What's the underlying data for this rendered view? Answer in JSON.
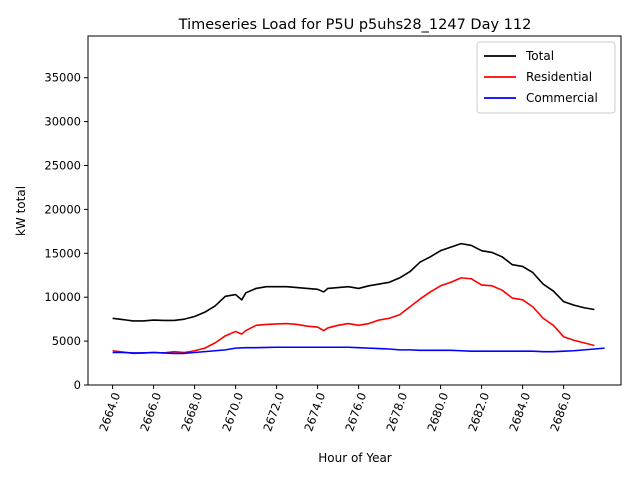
{
  "chart_data": {
    "type": "line",
    "title": "Timeseries Load for P5U p5uhs28_1247  Day 112",
    "xlabel": "Hour of Year",
    "ylabel": "kW total",
    "xlim": [
      2662.8,
      2688.8
    ],
    "ylim": [
      0,
      39750
    ],
    "grid": false,
    "legend_position": "top-right",
    "x_ticks": [
      2664,
      2666,
      2668,
      2670,
      2672,
      2674,
      2676,
      2678,
      2680,
      2682,
      2684,
      2686
    ],
    "x_tick_labels": [
      "2664.0",
      "2666.0",
      "2668.0",
      "2670.0",
      "2672.0",
      "2674.0",
      "2676.0",
      "2678.0",
      "2680.0",
      "2682.0",
      "2684.0",
      "2686.0"
    ],
    "y_ticks": [
      0,
      5000,
      10000,
      15000,
      20000,
      25000,
      30000,
      35000
    ],
    "y_tick_labels": [
      "0",
      "5000",
      "10000",
      "15000",
      "20000",
      "25000",
      "30000",
      "35000"
    ],
    "series": [
      {
        "name": "Total",
        "color": "#000000",
        "points": [
          [
            2664.0,
            7600
          ],
          [
            2664.5,
            7450
          ],
          [
            2665.0,
            7300
          ],
          [
            2665.5,
            7300
          ],
          [
            2666.0,
            7400
          ],
          [
            2666.5,
            7350
          ],
          [
            2667.0,
            7350
          ],
          [
            2667.5,
            7500
          ],
          [
            2668.0,
            7800
          ],
          [
            2668.5,
            8300
          ],
          [
            2669.0,
            9000
          ],
          [
            2669.5,
            10100
          ],
          [
            2670.0,
            10300
          ],
          [
            2670.3,
            9700
          ],
          [
            2670.5,
            10500
          ],
          [
            2671.0,
            11000
          ],
          [
            2671.5,
            11200
          ],
          [
            2672.0,
            11200
          ],
          [
            2672.5,
            11200
          ],
          [
            2673.0,
            11100
          ],
          [
            2673.5,
            11000
          ],
          [
            2674.0,
            10900
          ],
          [
            2674.3,
            10600
          ],
          [
            2674.5,
            11000
          ],
          [
            2675.0,
            11100
          ],
          [
            2675.5,
            11200
          ],
          [
            2676.0,
            11000
          ],
          [
            2676.5,
            11300
          ],
          [
            2677.0,
            11500
          ],
          [
            2677.5,
            11700
          ],
          [
            2678.0,
            12200
          ],
          [
            2678.5,
            12900
          ],
          [
            2679.0,
            14000
          ],
          [
            2679.5,
            14600
          ],
          [
            2680.0,
            15300
          ],
          [
            2680.5,
            15700
          ],
          [
            2681.0,
            16100
          ],
          [
            2681.5,
            15900
          ],
          [
            2682.0,
            15300
          ],
          [
            2682.5,
            15100
          ],
          [
            2683.0,
            14600
          ],
          [
            2683.5,
            13700
          ],
          [
            2684.0,
            13500
          ],
          [
            2684.5,
            12800
          ],
          [
            2685.0,
            11500
          ],
          [
            2685.5,
            10700
          ],
          [
            2686.0,
            9500
          ],
          [
            2686.5,
            9100
          ],
          [
            2687.0,
            8800
          ],
          [
            2687.5,
            8600
          ]
        ]
      },
      {
        "name": "Residential",
        "color": "#ff0000",
        "points": [
          [
            2664.0,
            3900
          ],
          [
            2664.5,
            3750
          ],
          [
            2665.0,
            3600
          ],
          [
            2665.5,
            3650
          ],
          [
            2666.0,
            3700
          ],
          [
            2666.5,
            3650
          ],
          [
            2667.0,
            3800
          ],
          [
            2667.5,
            3700
          ],
          [
            2668.0,
            3900
          ],
          [
            2668.5,
            4200
          ],
          [
            2669.0,
            4800
          ],
          [
            2669.5,
            5600
          ],
          [
            2670.0,
            6100
          ],
          [
            2670.3,
            5800
          ],
          [
            2670.5,
            6200
          ],
          [
            2671.0,
            6800
          ],
          [
            2671.5,
            6900
          ],
          [
            2672.0,
            6950
          ],
          [
            2672.5,
            7000
          ],
          [
            2673.0,
            6900
          ],
          [
            2673.5,
            6700
          ],
          [
            2674.0,
            6600
          ],
          [
            2674.3,
            6200
          ],
          [
            2674.5,
            6500
          ],
          [
            2675.0,
            6800
          ],
          [
            2675.5,
            7000
          ],
          [
            2676.0,
            6800
          ],
          [
            2676.5,
            7000
          ],
          [
            2677.0,
            7400
          ],
          [
            2677.5,
            7600
          ],
          [
            2678.0,
            8000
          ],
          [
            2678.5,
            8900
          ],
          [
            2679.0,
            9800
          ],
          [
            2679.5,
            10600
          ],
          [
            2680.0,
            11300
          ],
          [
            2680.5,
            11700
          ],
          [
            2681.0,
            12200
          ],
          [
            2681.5,
            12100
          ],
          [
            2682.0,
            11400
          ],
          [
            2682.5,
            11300
          ],
          [
            2683.0,
            10800
          ],
          [
            2683.5,
            9900
          ],
          [
            2684.0,
            9700
          ],
          [
            2684.5,
            8900
          ],
          [
            2685.0,
            7600
          ],
          [
            2685.5,
            6800
          ],
          [
            2686.0,
            5500
          ],
          [
            2686.5,
            5100
          ],
          [
            2687.0,
            4800
          ],
          [
            2687.5,
            4500
          ]
        ]
      },
      {
        "name": "Commercial",
        "color": "#0000ff",
        "points": [
          [
            2664.0,
            3700
          ],
          [
            2664.5,
            3700
          ],
          [
            2665.0,
            3650
          ],
          [
            2665.5,
            3650
          ],
          [
            2666.0,
            3700
          ],
          [
            2666.5,
            3650
          ],
          [
            2667.0,
            3600
          ],
          [
            2667.5,
            3600
          ],
          [
            2668.0,
            3700
          ],
          [
            2668.5,
            3800
          ],
          [
            2669.0,
            3900
          ],
          [
            2669.5,
            4000
          ],
          [
            2670.0,
            4200
          ],
          [
            2670.5,
            4250
          ],
          [
            2671.0,
            4250
          ],
          [
            2671.5,
            4280
          ],
          [
            2672.0,
            4300
          ],
          [
            2672.5,
            4300
          ],
          [
            2673.0,
            4300
          ],
          [
            2673.5,
            4300
          ],
          [
            2674.0,
            4300
          ],
          [
            2674.5,
            4300
          ],
          [
            2675.0,
            4300
          ],
          [
            2675.5,
            4300
          ],
          [
            2676.0,
            4250
          ],
          [
            2676.5,
            4200
          ],
          [
            2677.0,
            4150
          ],
          [
            2677.5,
            4100
          ],
          [
            2678.0,
            4000
          ],
          [
            2678.5,
            4000
          ],
          [
            2679.0,
            3950
          ],
          [
            2679.5,
            3950
          ],
          [
            2680.0,
            3950
          ],
          [
            2680.5,
            3950
          ],
          [
            2681.0,
            3900
          ],
          [
            2681.5,
            3850
          ],
          [
            2682.0,
            3850
          ],
          [
            2682.5,
            3850
          ],
          [
            2683.0,
            3850
          ],
          [
            2683.5,
            3850
          ],
          [
            2684.0,
            3850
          ],
          [
            2684.5,
            3850
          ],
          [
            2685.0,
            3800
          ],
          [
            2685.5,
            3800
          ],
          [
            2686.0,
            3850
          ],
          [
            2686.5,
            3900
          ],
          [
            2687.0,
            4000
          ],
          [
            2687.5,
            4100
          ],
          [
            2688.0,
            4200
          ]
        ]
      }
    ]
  }
}
